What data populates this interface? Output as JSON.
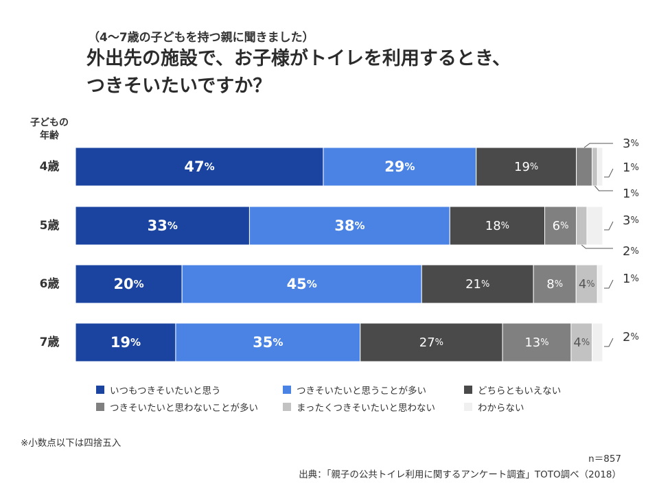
{
  "header": {
    "subtitle": "（4〜7歳の子どもを持つ親に聞きました）",
    "title_line1": "外出先の施設で、お子様がトイレを利用するとき、",
    "title_line2": "つきそいたいですか？"
  },
  "axis": {
    "category_header_line1": "子どもの",
    "category_header_line2": "年齢"
  },
  "colors": {
    "always": "#1a44a0",
    "often": "#4a83e3",
    "neutral": "#4a4a4a",
    "rarely": "#808080",
    "never": "#c2c2c2",
    "unknown": "#f0f0f0"
  },
  "chart_data": {
    "type": "bar",
    "orientation": "horizontal",
    "stacked": true,
    "unit": "%",
    "categories": [
      "4歳",
      "5歳",
      "6歳",
      "7歳"
    ],
    "xlim": [
      0,
      100
    ],
    "series": [
      {
        "name": "いつもつきそいたいと思う",
        "values": [
          47,
          33,
          20,
          19
        ]
      },
      {
        "name": "つきそいたいと思うことが多い",
        "values": [
          29,
          38,
          45,
          35
        ]
      },
      {
        "name": "どちらともいえない",
        "values": [
          19,
          18,
          21,
          27
        ]
      },
      {
        "name": "つきそいたいと思わないことが多い",
        "values": [
          3,
          6,
          8,
          13
        ]
      },
      {
        "name": "まったくつきそいたいと思わない",
        "values": [
          1,
          2,
          4,
          4
        ]
      },
      {
        "name": "わからない",
        "values": [
          1,
          3,
          1,
          2
        ]
      }
    ],
    "legend_position": "bottom",
    "grid": false
  },
  "footer": {
    "note": "※小数点以下は四捨五入",
    "sample_size": "n＝857",
    "source": "出典：「親子の公共トイレ利用に関するアンケート調査」TOTO調べ（2018）"
  }
}
